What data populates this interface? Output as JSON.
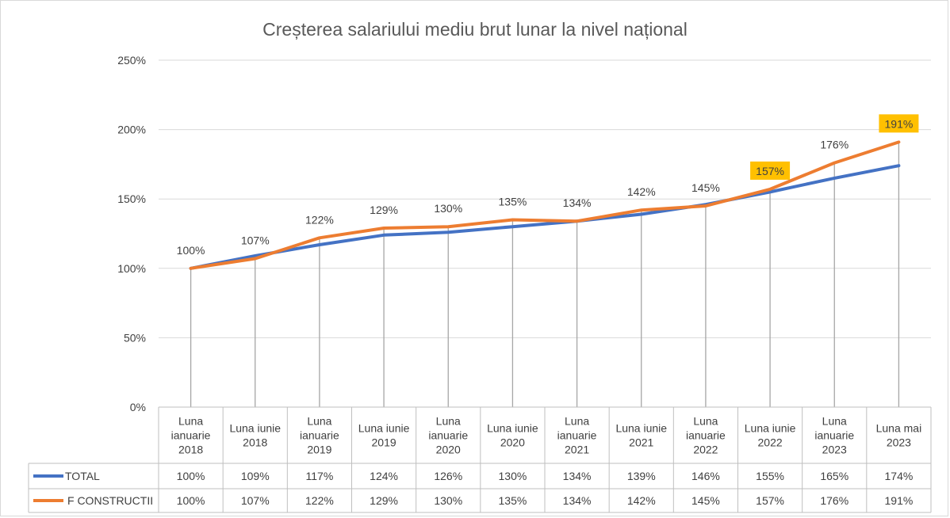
{
  "chart_data": {
    "type": "line",
    "title": "Creșterea salariului mediu brut lunar la nivel național",
    "categories": [
      [
        "Luna",
        "ianuarie",
        "2018"
      ],
      [
        "Luna iunie",
        "2018"
      ],
      [
        "Luna",
        "ianuarie",
        "2019"
      ],
      [
        "Luna iunie",
        "2019"
      ],
      [
        "Luna",
        "ianuarie",
        "2020"
      ],
      [
        "Luna iunie",
        "2020"
      ],
      [
        "Luna",
        "ianuarie",
        "2021"
      ],
      [
        "Luna iunie",
        "2021"
      ],
      [
        "Luna",
        "ianuarie",
        "2022"
      ],
      [
        "Luna iunie",
        "2022"
      ],
      [
        "Luna",
        "ianuarie",
        "2023"
      ],
      [
        "Luna mai",
        "2023"
      ]
    ],
    "yticks": [
      "0%",
      "50%",
      "100%",
      "150%",
      "200%",
      "250%"
    ],
    "ylim": [
      0,
      250
    ],
    "grid": true,
    "data_table": true,
    "series": [
      {
        "name": "TOTAL",
        "color": "#4472C4",
        "values": [
          100,
          109,
          117,
          124,
          126,
          130,
          134,
          139,
          146,
          155,
          165,
          174
        ],
        "table_labels": [
          "100%",
          "109%",
          "117%",
          "124%",
          "126%",
          "130%",
          "134%",
          "139%",
          "146%",
          "155%",
          "165%",
          "174%"
        ]
      },
      {
        "name": "F CONSTRUCTII",
        "color": "#ED7D31",
        "values": [
          100,
          107,
          122,
          129,
          130,
          135,
          134,
          142,
          145,
          157,
          176,
          191
        ],
        "table_labels": [
          "100%",
          "107%",
          "122%",
          "129%",
          "130%",
          "135%",
          "134%",
          "142%",
          "145%",
          "157%",
          "176%",
          "191%"
        ],
        "data_labels": [
          "100%",
          "107%",
          "122%",
          "129%",
          "130%",
          "135%",
          "134%",
          "142%",
          "145%",
          "157%",
          "176%",
          "191%"
        ],
        "highlighted_labels": [
          9,
          11
        ],
        "highlight_color": "#FFC000"
      }
    ]
  }
}
